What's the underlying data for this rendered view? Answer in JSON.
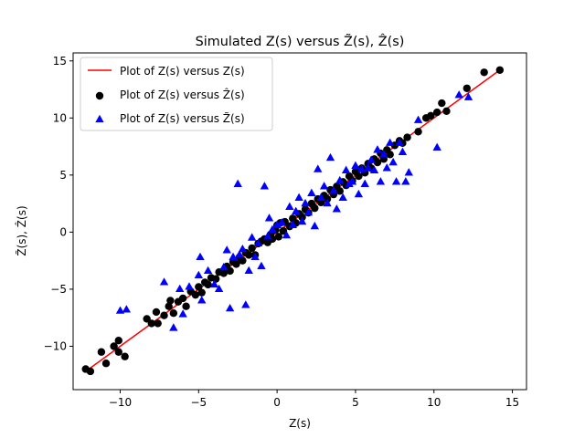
{
  "chart_data": {
    "type": "scatter",
    "title": "Simulated Z(s) versus Z̃(s), Ẑ(s)",
    "xlabel": "Z(s)",
    "ylabel": "Z̃(s), Ẑ(s)",
    "xlim": [
      -14,
      16
    ],
    "ylim": [
      -14,
      16
    ],
    "xticks": [
      -10,
      -5,
      0,
      5,
      10,
      15
    ],
    "yticks": [
      -10,
      -5,
      0,
      5,
      10,
      15
    ],
    "xtick_labels": [
      "−10",
      "−5",
      "0",
      "5",
      "10",
      "15"
    ],
    "ytick_labels": [
      "−10",
      "−5",
      "0",
      "5",
      "10",
      "15"
    ],
    "grid": false,
    "legend_position": "top-left",
    "series": [
      {
        "name": "Plot of Z(s) versus Z(s)",
        "kind": "line",
        "color": "#ff0000",
        "points": [
          [
            -12.2,
            -12.2
          ],
          [
            14.2,
            14.2
          ]
        ]
      },
      {
        "name": "Plot of Z(s) versus Ẑ(s)",
        "kind": "circle",
        "color": "#000000",
        "points": [
          [
            -12.2,
            -12.0
          ],
          [
            -11.9,
            -12.2
          ],
          [
            -11.2,
            -10.5
          ],
          [
            -10.9,
            -11.5
          ],
          [
            -10.4,
            -10.0
          ],
          [
            -10.1,
            -9.5
          ],
          [
            -10.1,
            -10.5
          ],
          [
            -9.7,
            -10.9
          ],
          [
            -8.3,
            -7.6
          ],
          [
            -8.0,
            -8.0
          ],
          [
            -7.7,
            -7.0
          ],
          [
            -7.6,
            -8.0
          ],
          [
            -7.2,
            -7.3
          ],
          [
            -6.9,
            -6.5
          ],
          [
            -6.8,
            -6.0
          ],
          [
            -6.6,
            -7.1
          ],
          [
            -6.3,
            -6.1
          ],
          [
            -6.0,
            -5.8
          ],
          [
            -5.8,
            -6.5
          ],
          [
            -5.5,
            -5.2
          ],
          [
            -5.2,
            -5.5
          ],
          [
            -5.0,
            -4.8
          ],
          [
            -4.8,
            -5.3
          ],
          [
            -4.6,
            -4.4
          ],
          [
            -4.4,
            -4.6
          ],
          [
            -4.2,
            -4.0
          ],
          [
            -3.9,
            -4.1
          ],
          [
            -3.7,
            -3.5
          ],
          [
            -3.4,
            -3.6
          ],
          [
            -3.2,
            -3.0
          ],
          [
            -3.0,
            -3.4
          ],
          [
            -2.8,
            -2.6
          ],
          [
            -2.6,
            -2.8
          ],
          [
            -2.4,
            -2.2
          ],
          [
            -2.2,
            -2.5
          ],
          [
            -2.0,
            -1.8
          ],
          [
            -1.8,
            -2.0
          ],
          [
            -1.6,
            -1.4
          ],
          [
            -1.4,
            -2.0
          ],
          [
            -1.2,
            -1.0
          ],
          [
            -1.0,
            -0.8
          ],
          [
            -0.8,
            -0.6
          ],
          [
            -0.6,
            -0.9
          ],
          [
            -0.4,
            -0.2
          ],
          [
            -0.3,
            -0.6
          ],
          [
            -0.1,
            0.2
          ],
          [
            0.0,
            0.6
          ],
          [
            0.1,
            -0.4
          ],
          [
            0.2,
            0.8
          ],
          [
            0.4,
            0.1
          ],
          [
            0.5,
            0.9
          ],
          [
            0.8,
            0.5
          ],
          [
            1.0,
            1.2
          ],
          [
            1.2,
            0.8
          ],
          [
            1.4,
            1.6
          ],
          [
            1.6,
            1.3
          ],
          [
            1.8,
            2.0
          ],
          [
            2.0,
            1.7
          ],
          [
            2.2,
            2.5
          ],
          [
            2.4,
            2.1
          ],
          [
            2.6,
            2.9
          ],
          [
            2.8,
            2.6
          ],
          [
            3.0,
            3.2
          ],
          [
            3.2,
            2.9
          ],
          [
            3.4,
            3.7
          ],
          [
            3.6,
            3.3
          ],
          [
            3.8,
            4.0
          ],
          [
            4.0,
            3.6
          ],
          [
            4.2,
            4.4
          ],
          [
            4.4,
            4.1
          ],
          [
            4.6,
            4.9
          ],
          [
            4.8,
            4.5
          ],
          [
            5.0,
            5.3
          ],
          [
            5.2,
            4.9
          ],
          [
            5.4,
            5.6
          ],
          [
            5.6,
            5.2
          ],
          [
            5.8,
            6.0
          ],
          [
            6.0,
            5.6
          ],
          [
            6.2,
            6.4
          ],
          [
            6.4,
            6.1
          ],
          [
            6.6,
            6.9
          ],
          [
            6.8,
            6.4
          ],
          [
            7.0,
            7.2
          ],
          [
            7.2,
            6.8
          ],
          [
            7.5,
            7.6
          ],
          [
            7.8,
            8.0
          ],
          [
            8.0,
            7.8
          ],
          [
            8.3,
            8.3
          ],
          [
            9.0,
            8.8
          ],
          [
            9.5,
            10.0
          ],
          [
            9.8,
            10.2
          ],
          [
            10.2,
            10.5
          ],
          [
            10.5,
            11.3
          ],
          [
            10.8,
            10.6
          ],
          [
            12.1,
            12.6
          ],
          [
            13.2,
            14.0
          ],
          [
            14.2,
            14.2
          ]
        ]
      },
      {
        "name": "Plot of Z(s) versus Z̃(s)",
        "kind": "triangle",
        "color": "#0000ff",
        "points": [
          [
            -10.0,
            -6.9
          ],
          [
            -9.6,
            -6.8
          ],
          [
            -7.2,
            -4.4
          ],
          [
            -6.6,
            -8.4
          ],
          [
            -6.2,
            -5.0
          ],
          [
            -6.0,
            -7.2
          ],
          [
            -5.6,
            -4.8
          ],
          [
            -5.0,
            -3.8
          ],
          [
            -4.9,
            -2.2
          ],
          [
            -4.8,
            -6.0
          ],
          [
            -4.4,
            -3.4
          ],
          [
            -4.0,
            -4.6
          ],
          [
            -3.7,
            -5.0
          ],
          [
            -3.4,
            -3.1
          ],
          [
            -3.2,
            -1.6
          ],
          [
            -3.0,
            -6.7
          ],
          [
            -2.8,
            -2.2
          ],
          [
            -2.5,
            4.2
          ],
          [
            -2.4,
            -2.0
          ],
          [
            -2.2,
            -1.5
          ],
          [
            -2.0,
            -6.4
          ],
          [
            -1.8,
            -3.4
          ],
          [
            -1.6,
            -0.5
          ],
          [
            -1.4,
            -2.2
          ],
          [
            -1.2,
            -1.0
          ],
          [
            -1.0,
            -3.0
          ],
          [
            -0.8,
            4.0
          ],
          [
            -0.6,
            -0.4
          ],
          [
            -0.5,
            1.2
          ],
          [
            -0.3,
            0.2
          ],
          [
            0.0,
            0.6
          ],
          [
            0.3,
            0.8
          ],
          [
            0.6,
            -0.3
          ],
          [
            0.8,
            2.2
          ],
          [
            1.0,
            0.6
          ],
          [
            1.2,
            1.8
          ],
          [
            1.4,
            3.0
          ],
          [
            1.6,
            0.9
          ],
          [
            1.8,
            2.5
          ],
          [
            2.0,
            1.7
          ],
          [
            2.2,
            3.4
          ],
          [
            2.4,
            0.5
          ],
          [
            2.6,
            5.5
          ],
          [
            2.8,
            3.0
          ],
          [
            3.0,
            4.0
          ],
          [
            3.2,
            2.5
          ],
          [
            3.4,
            6.5
          ],
          [
            3.6,
            3.6
          ],
          [
            3.8,
            2.0
          ],
          [
            4.0,
            4.5
          ],
          [
            4.2,
            3.0
          ],
          [
            4.4,
            5.4
          ],
          [
            4.6,
            4.2
          ],
          [
            4.8,
            4.4
          ],
          [
            5.0,
            5.8
          ],
          [
            5.2,
            3.3
          ],
          [
            5.4,
            5.5
          ],
          [
            5.6,
            4.2
          ],
          [
            5.8,
            5.6
          ],
          [
            6.0,
            6.3
          ],
          [
            6.2,
            5.4
          ],
          [
            6.4,
            7.2
          ],
          [
            6.6,
            4.4
          ],
          [
            6.8,
            6.8
          ],
          [
            7.0,
            5.6
          ],
          [
            7.2,
            7.8
          ],
          [
            7.4,
            6.1
          ],
          [
            7.6,
            4.4
          ],
          [
            7.8,
            7.8
          ],
          [
            8.0,
            7.0
          ],
          [
            8.2,
            4.4
          ],
          [
            8.4,
            5.2
          ],
          [
            9.0,
            9.8
          ],
          [
            10.2,
            7.4
          ],
          [
            11.6,
            12.0
          ],
          [
            12.2,
            11.8
          ]
        ]
      }
    ]
  }
}
